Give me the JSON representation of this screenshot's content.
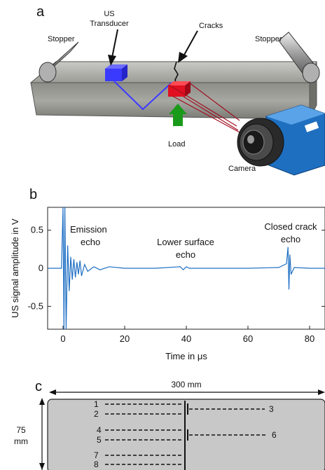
{
  "panel_a": {
    "label": "a",
    "stopper_left": "Stopper",
    "stopper_right": "Stopper",
    "transducer_line1": "US",
    "transducer_line2": "Transducer",
    "cracks": "Cracks",
    "load": "Load",
    "camera": "Camera",
    "colors": {
      "transducer": "#3a3aff",
      "load_point": "#e01020",
      "load_arrow": "#1a9a1a",
      "camera_body": "#1e6fc0"
    }
  },
  "panel_b": {
    "label": "b",
    "annotations": {
      "emission_line1": "Emission",
      "emission_line2": "echo",
      "lower_line1": "Lower surface",
      "lower_line2": "echo",
      "closed_line1": "Closed crack",
      "closed_line2": "echo"
    },
    "chart_data": {
      "type": "line",
      "title": "",
      "xlabel": "Time in μs",
      "ylabel": "US signal amplitude in V",
      "xlim": [
        -5,
        85
      ],
      "ylim": [
        -0.8,
        0.8
      ],
      "xticks": [
        0,
        20,
        40,
        60,
        80
      ],
      "yticks": [
        0.5,
        0,
        -0.5
      ],
      "xtick_labels": [
        "0",
        "20",
        "40",
        "60",
        "80"
      ],
      "ytick_labels": [
        "0.5",
        "0",
        "-0.5"
      ],
      "grid": false,
      "color": "#1f6fc4",
      "series": [
        {
          "x": [
            -5,
            -0.5,
            0.0,
            0.3,
            0.6,
            1.0,
            1.5,
            2.0,
            2.5,
            3.0,
            3.5,
            4.0,
            4.5,
            5.0,
            5.5,
            6.0,
            7.0,
            8.0,
            10,
            12,
            15,
            20,
            30,
            38,
            39,
            40,
            41,
            50,
            60,
            70,
            72.5,
            73.0,
            73.3,
            73.6,
            74.0,
            75,
            80,
            85
          ],
          "y": [
            0,
            0,
            0.85,
            -0.85,
            0.8,
            -0.8,
            0.3,
            -0.3,
            0.15,
            -0.15,
            0.12,
            -0.12,
            0.08,
            -0.08,
            0.1,
            -0.1,
            0.05,
            -0.04,
            0.02,
            -0.02,
            0.02,
            0.0,
            0.0,
            0.02,
            -0.02,
            0.02,
            0.0,
            0.0,
            0.0,
            0.01,
            0.06,
            0.28,
            -0.28,
            0.18,
            -0.08,
            0.01,
            0.0,
            0.0
          ]
        }
      ]
    }
  },
  "panel_c": {
    "label": "c",
    "width_dim": "300 mm",
    "height_value": "75",
    "height_unit": "mm",
    "crack_labels": [
      "1",
      "2",
      "3",
      "4",
      "5",
      "6",
      "7",
      "8"
    ]
  }
}
